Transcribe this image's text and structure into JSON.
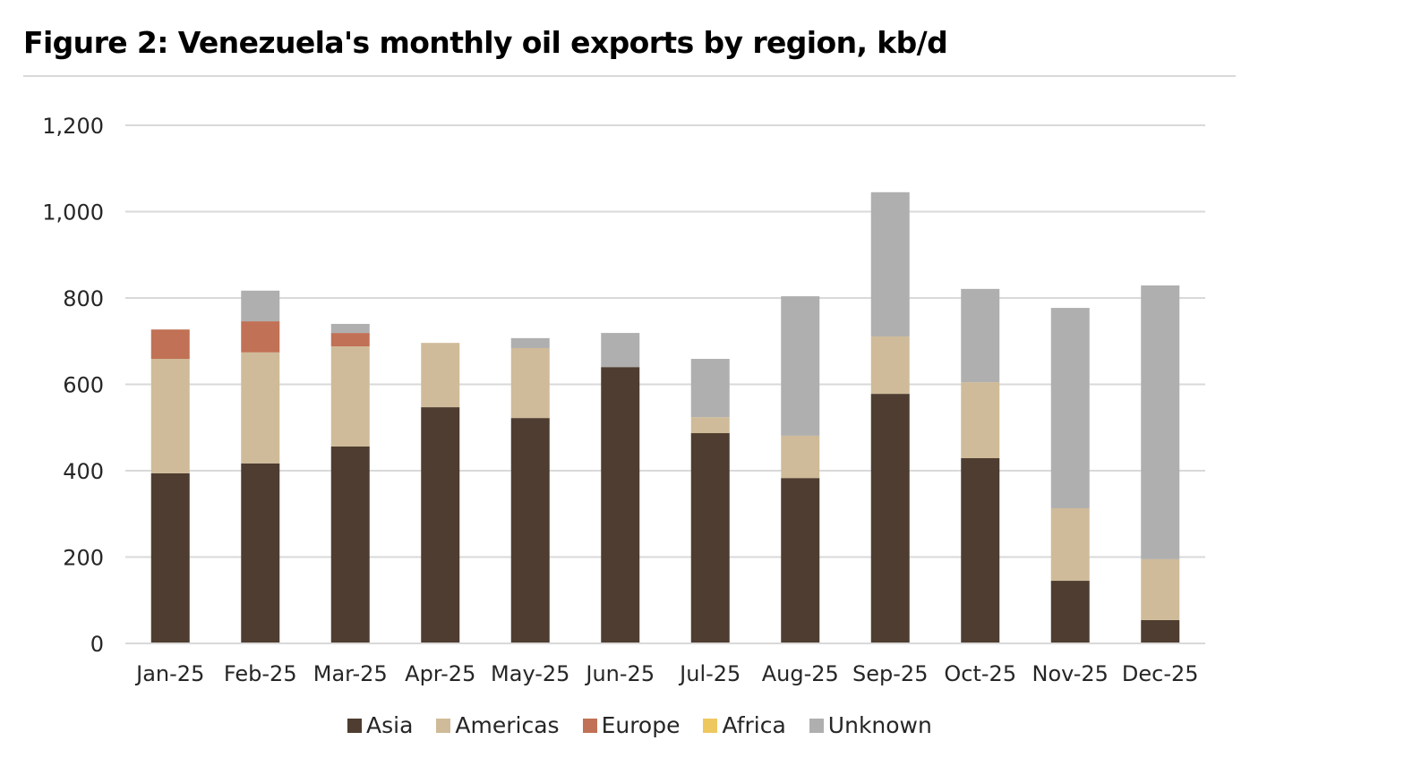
{
  "chart_data": {
    "type": "bar",
    "stacked": true,
    "title": "Figure 2: Venezuela's monthly oil exports by region, kb/d",
    "xlabel": "",
    "ylabel": "",
    "ylim": [
      0,
      1200
    ],
    "yticks": [
      0,
      200,
      400,
      600,
      800,
      1000,
      1200
    ],
    "ytick_labels": [
      "0",
      "200",
      "400",
      "600",
      "800",
      "1,000",
      "1,200"
    ],
    "grid": true,
    "legend_position": "bottom",
    "categories": [
      "Jan-25",
      "Feb-25",
      "Mar-25",
      "Apr-25",
      "May-25",
      "Jun-25",
      "Jul-25",
      "Aug-25",
      "Sep-25",
      "Oct-25",
      "Nov-25",
      "Dec-25"
    ],
    "series": [
      {
        "name": "Asia",
        "color": "#4e3d30",
        "values": [
          394,
          417,
          456,
          547,
          522,
          640,
          487,
          383,
          578,
          429,
          145,
          54
        ]
      },
      {
        "name": "Americas",
        "color": "#cfbb99",
        "values": [
          265,
          257,
          232,
          149,
          162,
          0,
          37,
          98,
          133,
          176,
          168,
          141
        ]
      },
      {
        "name": "Europe",
        "color": "#c17155",
        "values": [
          68,
          72,
          31,
          0,
          0,
          0,
          0,
          0,
          0,
          0,
          0,
          0
        ]
      },
      {
        "name": "Africa",
        "color": "#eec85f",
        "values": [
          0,
          0,
          0,
          0,
          0,
          0,
          0,
          0,
          0,
          0,
          0,
          0
        ]
      },
      {
        "name": "Unknown",
        "color": "#afafaf",
        "values": [
          0,
          71,
          21,
          0,
          23,
          79,
          135,
          323,
          334,
          216,
          464,
          634
        ]
      }
    ]
  }
}
